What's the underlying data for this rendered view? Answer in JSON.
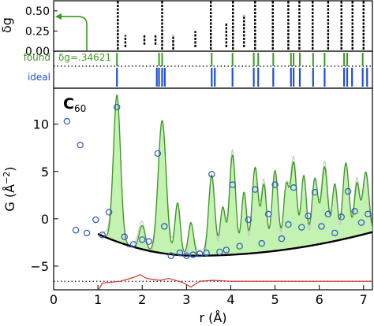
{
  "colors": {
    "axis": "#000000",
    "found": "#3a9a1f",
    "found_fill": "#b9f0a3",
    "ideal": "#1f4fd8",
    "points": "#2b55c9",
    "baseline": "#000000",
    "difference": "#d9301f",
    "dotted": "#000000",
    "calc_gray": "#c7c7c7"
  },
  "chart_data": [
    {
      "type": "scatter",
      "panel": "delta-g",
      "ylabel": "δg",
      "ylim": [
        0,
        0.625
      ],
      "yticks": [
        0.0,
        0.25,
        0.5
      ],
      "ytick_labels": [
        "0.00",
        "0.25",
        "0.50"
      ],
      "xlim": [
        0,
        7.2
      ],
      "arrow_hint": "green arrow pointing from the 0.00 line up to the δg axis",
      "columns": [
        {
          "x": 1.45,
          "ymin": 0.02,
          "ymax": 0.62
        },
        {
          "x": 1.62,
          "ymin": 0.05,
          "ymax": 0.2
        },
        {
          "x": 2.05,
          "ymin": 0.08,
          "ymax": 0.2
        },
        {
          "x": 2.3,
          "ymin": 0.08,
          "ymax": 0.2
        },
        {
          "x": 2.45,
          "ymin": 0.02,
          "ymax": 0.62
        },
        {
          "x": 2.7,
          "ymin": 0.02,
          "ymax": 0.2
        },
        {
          "x": 3.2,
          "ymin": 0.05,
          "ymax": 0.25
        },
        {
          "x": 3.55,
          "ymin": 0.02,
          "ymax": 0.62
        },
        {
          "x": 3.9,
          "ymin": 0.05,
          "ymax": 0.35
        },
        {
          "x": 4.05,
          "ymin": 0.02,
          "ymax": 0.62
        },
        {
          "x": 4.3,
          "ymin": 0.05,
          "ymax": 0.45
        },
        {
          "x": 4.55,
          "ymin": 0.02,
          "ymax": 0.62
        },
        {
          "x": 4.95,
          "ymin": 0.02,
          "ymax": 0.62
        },
        {
          "x": 5.3,
          "ymin": 0.02,
          "ymax": 0.62
        },
        {
          "x": 5.55,
          "ymin": 0.02,
          "ymax": 0.62
        },
        {
          "x": 5.85,
          "ymin": 0.02,
          "ymax": 0.62
        },
        {
          "x": 6.2,
          "ymin": 0.02,
          "ymax": 0.62
        },
        {
          "x": 6.5,
          "ymin": 0.02,
          "ymax": 0.62
        },
        {
          "x": 6.75,
          "ymin": 0.02,
          "ymax": 0.62
        },
        {
          "x": 7.0,
          "ymin": 0.02,
          "ymax": 0.62
        }
      ]
    },
    {
      "type": "line",
      "panel": "peak-positions",
      "xlim": [
        0,
        7.2
      ],
      "labels": {
        "found": "found",
        "annotation": "δg=.34621",
        "ideal": "ideal"
      },
      "found_peaks": [
        1.43,
        2.38,
        2.45,
        3.57,
        4.04,
        4.52,
        4.62,
        4.96,
        5.36,
        5.42,
        5.56,
        5.86,
        6.12,
        6.56,
        6.63,
        6.98
      ],
      "ideal_peaks": [
        1.43,
        2.33,
        2.38,
        2.45,
        2.51,
        3.57,
        3.64,
        4.04,
        4.52,
        4.62,
        4.96,
        5.36,
        5.42,
        5.56,
        5.86,
        6.12,
        6.56,
        6.63,
        6.74,
        6.98,
        7.08
      ]
    },
    {
      "type": "line",
      "panel": "pdf",
      "title": "C60",
      "title_main": "C",
      "title_sub": "60",
      "xlabel": "r (Å)",
      "ylabel_main": "G (Å",
      "ylabel_exp": "−2",
      "ylabel_close": ")",
      "xlim": [
        0,
        7.2
      ],
      "ylim": [
        -7.5,
        13.8
      ],
      "xticks": [
        0,
        1,
        2,
        3,
        4,
        5,
        6,
        7
      ],
      "yticks": [
        -5,
        0,
        5,
        10
      ],
      "ytick_labels": [
        "−5",
        "0",
        "5",
        "10"
      ],
      "baseline_range": [
        1.0,
        7.2
      ],
      "baseline_shape": "-1.6 at r=1.0, minimum -3.9 near r=3.2, rising to -1.4 at r=7.2",
      "peaks": [
        {
          "x": 1.43,
          "height": 15.5,
          "width": 0.08
        },
        {
          "x": 2.0,
          "height": 2.5,
          "width": 0.07
        },
        {
          "x": 2.45,
          "height": 14.0,
          "width": 0.09
        },
        {
          "x": 2.8,
          "height": 5.5,
          "width": 0.06
        },
        {
          "x": 3.1,
          "height": 3.5,
          "width": 0.06
        },
        {
          "x": 3.57,
          "height": 8.5,
          "width": 0.07
        },
        {
          "x": 3.82,
          "height": 5.0,
          "width": 0.06
        },
        {
          "x": 4.04,
          "height": 10.5,
          "width": 0.07
        },
        {
          "x": 4.3,
          "height": 6.5,
          "width": 0.06
        },
        {
          "x": 4.55,
          "height": 9.0,
          "width": 0.07
        },
        {
          "x": 4.75,
          "height": 7.0,
          "width": 0.06
        },
        {
          "x": 5.0,
          "height": 8.5,
          "width": 0.07
        },
        {
          "x": 5.25,
          "height": 6.5,
          "width": 0.06
        },
        {
          "x": 5.42,
          "height": 9.0,
          "width": 0.07
        },
        {
          "x": 5.65,
          "height": 7.5,
          "width": 0.06
        },
        {
          "x": 5.9,
          "height": 7.0,
          "width": 0.07
        },
        {
          "x": 6.12,
          "height": 8.0,
          "width": 0.07
        },
        {
          "x": 6.35,
          "height": 6.0,
          "width": 0.06
        },
        {
          "x": 6.6,
          "height": 8.0,
          "width": 0.07
        },
        {
          "x": 6.85,
          "height": 5.5,
          "width": 0.06
        },
        {
          "x": 7.05,
          "height": 6.5,
          "width": 0.07
        }
      ],
      "observed": [
        {
          "x": 0.3,
          "y": 10.3
        },
        {
          "x": 0.5,
          "y": -1.2
        },
        {
          "x": 0.6,
          "y": 7.8
        },
        {
          "x": 0.75,
          "y": -1.5
        },
        {
          "x": 0.95,
          "y": -0.1
        },
        {
          "x": 1.1,
          "y": -1.7
        },
        {
          "x": 1.25,
          "y": 0.7
        },
        {
          "x": 1.43,
          "y": 11.8
        },
        {
          "x": 1.6,
          "y": -1.9
        },
        {
          "x": 1.8,
          "y": -2.7
        },
        {
          "x": 2.0,
          "y": -2.2
        },
        {
          "x": 2.15,
          "y": -2.4
        },
        {
          "x": 2.35,
          "y": 6.9
        },
        {
          "x": 2.5,
          "y": -0.8
        },
        {
          "x": 2.65,
          "y": -3.9
        },
        {
          "x": 2.85,
          "y": -3.6
        },
        {
          "x": 3.0,
          "y": -3.9
        },
        {
          "x": 3.15,
          "y": -3.8
        },
        {
          "x": 3.3,
          "y": -3.7
        },
        {
          "x": 3.45,
          "y": -3.6
        },
        {
          "x": 3.57,
          "y": 4.7
        },
        {
          "x": 3.75,
          "y": -3.5
        },
        {
          "x": 3.9,
          "y": -3.3
        },
        {
          "x": 4.04,
          "y": 3.6
        },
        {
          "x": 4.2,
          "y": -2.9
        },
        {
          "x": 4.4,
          "y": -0.1
        },
        {
          "x": 4.55,
          "y": 3.1
        },
        {
          "x": 4.7,
          "y": -2.6
        },
        {
          "x": 4.85,
          "y": 0.5
        },
        {
          "x": 5.0,
          "y": 3.6
        },
        {
          "x": 5.15,
          "y": -2.1
        },
        {
          "x": 5.3,
          "y": -0.6
        },
        {
          "x": 5.42,
          "y": 3.3
        },
        {
          "x": 5.6,
          "y": -0.9
        },
        {
          "x": 5.75,
          "y": 0.3
        },
        {
          "x": 5.9,
          "y": 2.8
        },
        {
          "x": 6.05,
          "y": -0.8
        },
        {
          "x": 6.2,
          "y": 0.5
        },
        {
          "x": 6.35,
          "y": -1.5
        },
        {
          "x": 6.5,
          "y": 0.2
        },
        {
          "x": 6.65,
          "y": 2.9
        },
        {
          "x": 6.8,
          "y": 0.8
        },
        {
          "x": 6.95,
          "y": -0.4
        },
        {
          "x": 7.1,
          "y": 0.5
        }
      ],
      "residual_offset": -6.6,
      "difference": [
        {
          "x": 1.0,
          "y": -7.6
        },
        {
          "x": 1.1,
          "y": -6.8
        },
        {
          "x": 1.5,
          "y": -6.6
        },
        {
          "x": 1.8,
          "y": -6.2
        },
        {
          "x": 1.95,
          "y": -5.9
        },
        {
          "x": 2.1,
          "y": -6.3
        },
        {
          "x": 2.4,
          "y": -6.5
        },
        {
          "x": 2.6,
          "y": -6.3
        },
        {
          "x": 2.9,
          "y": -6.7
        },
        {
          "x": 3.1,
          "y": -7.2
        },
        {
          "x": 3.3,
          "y": -6.6
        },
        {
          "x": 3.6,
          "y": -6.5
        },
        {
          "x": 4.0,
          "y": -6.6
        },
        {
          "x": 4.6,
          "y": -6.6
        },
        {
          "x": 5.5,
          "y": -6.6
        },
        {
          "x": 6.5,
          "y": -6.6
        },
        {
          "x": 7.2,
          "y": -6.6
        }
      ]
    }
  ]
}
